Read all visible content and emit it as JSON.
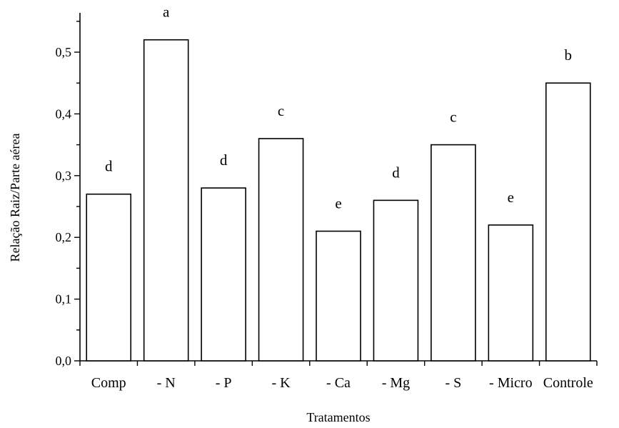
{
  "chart_data": {
    "type": "bar",
    "title": "",
    "xlabel": "Tratamentos",
    "ylabel": "Relação Raiz/Parte aérea",
    "ylim": [
      0,
      0.55
    ],
    "yticks": [
      "0,0",
      "0,1",
      "0,2",
      "0,3",
      "0,4",
      "0,5"
    ],
    "ytick_values": [
      0,
      0.1,
      0.2,
      0.3,
      0.4,
      0.5
    ],
    "categories": [
      "Comp",
      "- N",
      "- P",
      "- K",
      "- Ca",
      "- Mg",
      "- S",
      "- Micro",
      "Controle"
    ],
    "values": [
      0.27,
      0.52,
      0.28,
      0.36,
      0.21,
      0.26,
      0.35,
      0.22,
      0.45
    ],
    "annotations": [
      "d",
      "a",
      "d",
      "c",
      "e",
      "d",
      "c",
      "e",
      "b"
    ],
    "grid": false,
    "legend": "none"
  }
}
